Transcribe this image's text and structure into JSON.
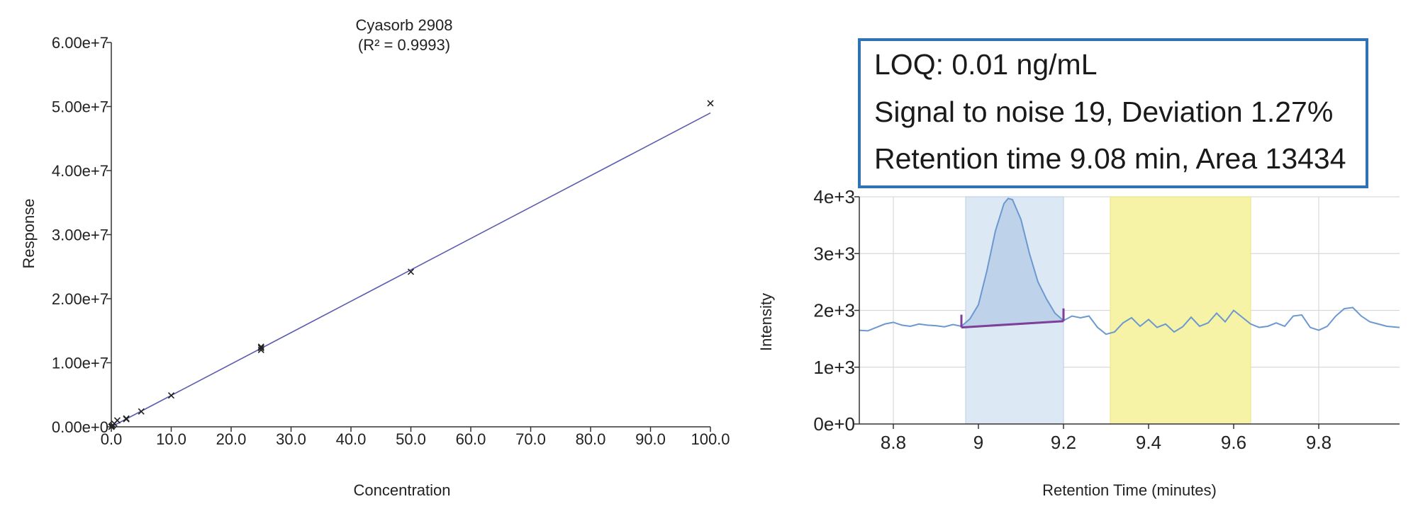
{
  "chart_data": [
    {
      "type": "scatter",
      "title": "Cyasorb 2908",
      "subtitle": "(R² = 0.9993)",
      "xlabel": "Concentration",
      "ylabel": "Response",
      "xlim": [
        0,
        100
      ],
      "ylim": [
        0,
        60000000
      ],
      "x_ticks": [
        "0.0",
        "10.0",
        "20.0",
        "30.0",
        "40.0",
        "50.0",
        "60.0",
        "70.0",
        "80.0",
        "90.0",
        "100.0"
      ],
      "y_ticks": [
        "0.00e+0",
        "1.00e+7",
        "2.00e+7",
        "3.00e+7",
        "4.00e+7",
        "5.00e+7",
        "6.00e+7"
      ],
      "grid": false,
      "series": [
        {
          "marker": "x",
          "points": [
            {
              "x": 0.01,
              "y": 0
            },
            {
              "x": 0.05,
              "y": 50000
            },
            {
              "x": 0.1,
              "y": 100000
            },
            {
              "x": 0.25,
              "y": 250000
            },
            {
              "x": 0.5,
              "y": 500000
            },
            {
              "x": 1.0,
              "y": 1000000
            },
            {
              "x": 2.5,
              "y": 1200000
            },
            {
              "x": 2.5,
              "y": 1300000
            },
            {
              "x": 5.0,
              "y": 2400000
            },
            {
              "x": 10.0,
              "y": 4900000
            },
            {
              "x": 25.0,
              "y": 12000000
            },
            {
              "x": 25.0,
              "y": 12300000
            },
            {
              "x": 25.0,
              "y": 12500000
            },
            {
              "x": 50.0,
              "y": 24200000
            },
            {
              "x": 100.0,
              "y": 50500000
            }
          ]
        }
      ],
      "fit_line": {
        "x": [
          0,
          100
        ],
        "y": [
          0,
          49000000
        ],
        "color": "#5b5bb0"
      }
    },
    {
      "type": "line",
      "title": "",
      "xlabel": "Retention Time (minutes)",
      "ylabel": "Intensity",
      "xlim": [
        8.72,
        9.99
      ],
      "ylim": [
        0,
        4000
      ],
      "x_ticks": [
        "8.8",
        "9",
        "9.2",
        "9.4",
        "9.6",
        "9.8"
      ],
      "y_ticks": [
        "0e+0",
        "1e+3",
        "2e+3",
        "3e+3",
        "4e+3"
      ],
      "grid": true,
      "line_color": "#6b98cf",
      "peak_region": {
        "x_start": 8.97,
        "x_end": 9.2,
        "color": "#dce9f5"
      },
      "noise_region": {
        "x_start": 9.31,
        "x_end": 9.64,
        "color": "#f6f3a6"
      },
      "baseline": {
        "x": [
          8.96,
          9.2
        ],
        "y": [
          1700,
          1810
        ],
        "color": "#7d3f98"
      },
      "series": [
        {
          "x": [
            8.72,
            8.74,
            8.76,
            8.78,
            8.8,
            8.82,
            8.84,
            8.86,
            8.88,
            8.9,
            8.92,
            8.94,
            8.96,
            8.98,
            9.0,
            9.02,
            9.04,
            9.06,
            9.07,
            9.08,
            9.1,
            9.12,
            9.14,
            9.16,
            9.18,
            9.2,
            9.22,
            9.24,
            9.26,
            9.28,
            9.3,
            9.32,
            9.34,
            9.36,
            9.38,
            9.4,
            9.42,
            9.44,
            9.46,
            9.48,
            9.5,
            9.52,
            9.54,
            9.56,
            9.58,
            9.6,
            9.62,
            9.64,
            9.66,
            9.68,
            9.7,
            9.72,
            9.74,
            9.76,
            9.78,
            9.8,
            9.82,
            9.84,
            9.86,
            9.88,
            9.9,
            9.92,
            9.94,
            9.96,
            9.99
          ],
          "y": [
            1650,
            1640,
            1700,
            1760,
            1790,
            1740,
            1720,
            1760,
            1740,
            1730,
            1710,
            1750,
            1720,
            1850,
            2100,
            2700,
            3400,
            3880,
            3970,
            3950,
            3600,
            3000,
            2500,
            2200,
            1950,
            1820,
            1900,
            1870,
            1900,
            1700,
            1580,
            1620,
            1780,
            1870,
            1720,
            1840,
            1700,
            1760,
            1620,
            1710,
            1880,
            1720,
            1780,
            1950,
            1800,
            2000,
            1880,
            1760,
            1700,
            1720,
            1780,
            1720,
            1900,
            1920,
            1700,
            1650,
            1720,
            1900,
            2030,
            2050,
            1900,
            1800,
            1760,
            1720,
            1700
          ]
        }
      ]
    }
  ],
  "info_box": {
    "line1": "LOQ: 0.01 ng/mL",
    "line2": "Signal to noise 19, Deviation 1.27%",
    "line3": "Retention time 9.08 min, Area 13434",
    "border_color": "#2e74b5"
  }
}
